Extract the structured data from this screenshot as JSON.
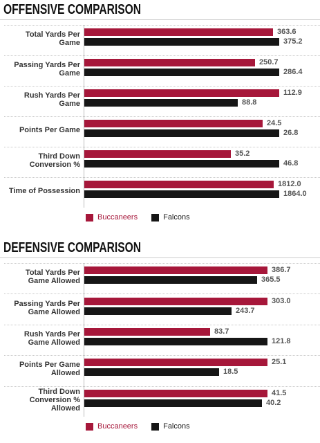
{
  "chart_data": [
    {
      "type": "bar",
      "orientation": "horizontal",
      "title": "OFFENSIVE COMPARISON",
      "categories": [
        "Total Yards Per Game",
        "Passing Yards Per Game",
        "Rush Yards Per Game",
        "Points Per Game",
        "Third Down Conversion %",
        "Time of Possession"
      ],
      "series": [
        {
          "name": "Buccaneers",
          "color": "#a6173a",
          "values": [
            363.6,
            250.7,
            112.9,
            24.5,
            35.2,
            1812.0
          ]
        },
        {
          "name": "Falcons",
          "color": "#161616",
          "values": [
            375.2,
            286.4,
            88.8,
            26.8,
            46.8,
            1864.0
          ]
        }
      ],
      "value_labels": [
        [
          "363.6",
          "250.7",
          "112.9",
          "24.5",
          "35.2",
          "1812.0"
        ],
        [
          "375.2",
          "286.4",
          "88.8",
          "26.8",
          "46.8",
          "1864.0"
        ]
      ],
      "scaling": "per-category relative",
      "legend_position": "bottom-left",
      "grid": false
    },
    {
      "type": "bar",
      "orientation": "horizontal",
      "title": "DEFENSIVE COMPARISON",
      "categories": [
        "Total Yards Per Game Allowed",
        "Passing Yards Per Game Allowed",
        "Rush Yards Per Game Allowed",
        "Points Per Game Allowed",
        "Third Down Conversion % Allowed"
      ],
      "series": [
        {
          "name": "Buccaneers",
          "color": "#a6173a",
          "values": [
            386.7,
            303.0,
            83.7,
            25.1,
            41.5
          ]
        },
        {
          "name": "Falcons",
          "color": "#161616",
          "values": [
            365.5,
            243.7,
            121.8,
            18.5,
            40.2
          ]
        }
      ],
      "value_labels": [
        [
          "386.7",
          "303.0",
          "83.7",
          "25.1",
          "41.5"
        ],
        [
          "365.5",
          "243.7",
          "121.8",
          "18.5",
          "40.2"
        ]
      ],
      "scaling": "per-category relative",
      "legend_position": "bottom-left",
      "grid": false
    }
  ],
  "display": {
    "offensive_label_lines": [
      [
        "Total Yards Per",
        "Game"
      ],
      [
        "Passing Yards Per",
        "Game"
      ],
      [
        "Rush Yards Per",
        "Game"
      ],
      [
        "Points Per Game"
      ],
      [
        "Third Down",
        "Conversion %"
      ],
      [
        "Time of Possession"
      ]
    ],
    "defensive_label_lines": [
      [
        "Total Yards Per",
        "Game Allowed"
      ],
      [
        "Passing Yards Per",
        "Game Allowed"
      ],
      [
        "Rush Yards Per",
        "Game Allowed"
      ],
      [
        "Points Per Game",
        "Allowed"
      ],
      [
        "Third Down",
        "Conversion %",
        "Allowed"
      ]
    ]
  },
  "colors": {
    "buccaneers": "#a6173a",
    "falcons": "#161616",
    "buccaneers_legend_text": "#a6173a",
    "falcons_legend_text": "#222222"
  }
}
